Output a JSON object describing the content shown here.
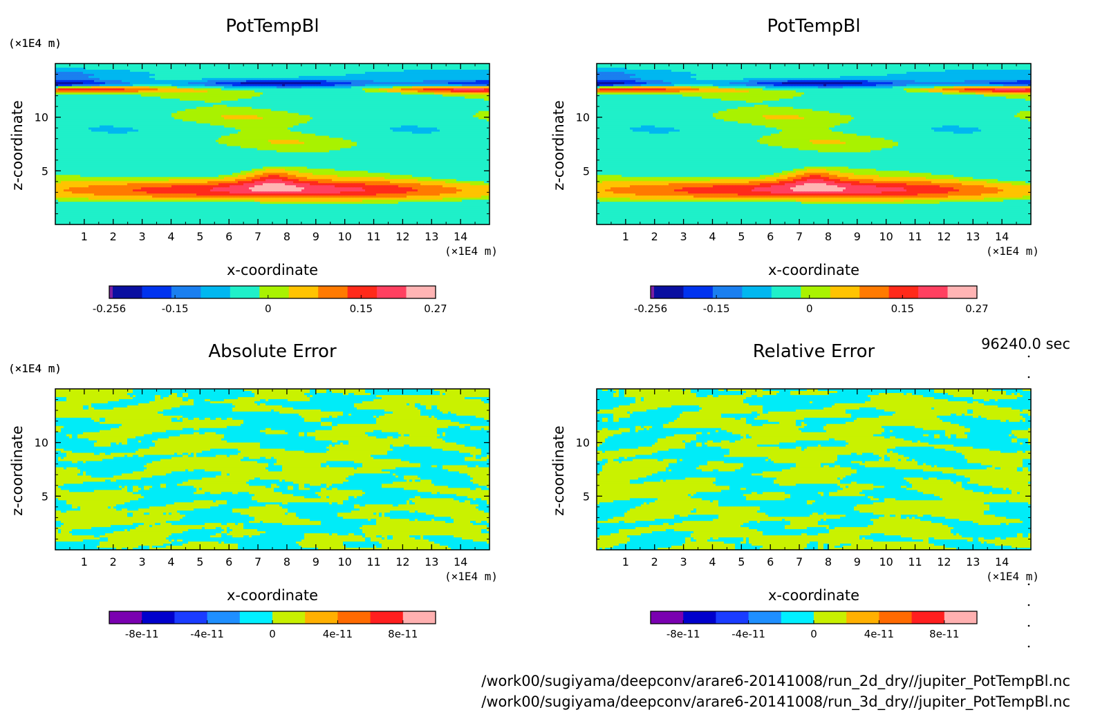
{
  "colors": {
    "palette_main": [
      "#7a1fa2",
      "#0a0fa0",
      "#0033ee",
      "#1a7ff0",
      "#00b7f0",
      "#1ff0c9",
      "#a9f200",
      "#ffc300",
      "#ff7a00",
      "#ff2a1a",
      "#ff4060",
      "#ffb4b4"
    ],
    "palette_error": [
      "#7a00b0",
      "#0000cc",
      "#1a3cff",
      "#1f8fff",
      "#00f0ff",
      "#c8f000",
      "#ffb000",
      "#ff6a00",
      "#ff1f1f",
      "#ffb0b0"
    ],
    "cyan_err": "#00ecf8",
    "yellow_err": "#c9f200"
  },
  "footer": {
    "time": "96240.0 sec",
    "path1": "/work00/sugiyama/deepconv/arare6-20141008/run_2d_dry//jupiter_PotTempBl.nc",
    "path2": "/work00/sugiyama/deepconv/arare6-20141008/run_3d_dry//jupiter_PotTempBl.nc"
  },
  "chart_data": [
    {
      "type": "heatmap",
      "title": "PotTempBl",
      "xlabel": "x-coordinate",
      "ylabel": "z-coordinate",
      "x_unit": "(×1E4 m)",
      "y_unit": "(×1E4 m)",
      "xlim": [
        0,
        15
      ],
      "ylim": [
        0,
        15
      ],
      "xticks": [
        "1",
        "2",
        "3",
        "4",
        "5",
        "6",
        "7",
        "8",
        "9",
        "10",
        "11",
        "12",
        "13",
        "14"
      ],
      "yticks": [
        "5",
        "10"
      ],
      "colorbar": {
        "labels": [
          "-0.256",
          "-0.15",
          "0",
          "0.15",
          "0.27"
        ],
        "min": -0.256,
        "max": 0.27
      },
      "field": "pottemp"
    },
    {
      "type": "heatmap",
      "title": "PotTempBl",
      "xlabel": "x-coordinate",
      "ylabel": "z-coordinate",
      "x_unit": "(×1E4 m)",
      "y_unit": "(×1E4 m)",
      "xlim": [
        0,
        15
      ],
      "ylim": [
        0,
        15
      ],
      "xticks": [
        "1",
        "2",
        "3",
        "4",
        "5",
        "6",
        "7",
        "8",
        "9",
        "10",
        "11",
        "12",
        "13",
        "14"
      ],
      "yticks": [
        "5",
        "10"
      ],
      "colorbar": {
        "labels": [
          "-0.256",
          "-0.15",
          "0",
          "0.15",
          "0.27"
        ],
        "min": -0.256,
        "max": 0.27
      },
      "field": "pottemp"
    },
    {
      "type": "heatmap",
      "title": "Absolute Error",
      "xlabel": "x-coordinate",
      "ylabel": "z-coordinate",
      "x_unit": "(×1E4 m)",
      "y_unit": "(×1E4 m)",
      "xlim": [
        0,
        15
      ],
      "ylim": [
        0,
        15
      ],
      "xticks": [
        "1",
        "2",
        "3",
        "4",
        "5",
        "6",
        "7",
        "8",
        "9",
        "10",
        "11",
        "12",
        "13",
        "14"
      ],
      "yticks": [
        "5",
        "10"
      ],
      "colorbar": {
        "labels": [
          "-8e-11",
          "-4e-11",
          "0",
          "4e-11",
          "8e-11"
        ],
        "min": -1e-10,
        "max": 1e-10
      },
      "field": "error"
    },
    {
      "type": "heatmap",
      "title": "Relative Error",
      "xlabel": "x-coordinate",
      "ylabel": "z-coordinate",
      "x_unit": "(×1E4 m)",
      "y_unit": "(×1E4 m)",
      "xlim": [
        0,
        15
      ],
      "ylim": [
        0,
        15
      ],
      "xticks": [
        "1",
        "2",
        "3",
        "4",
        "5",
        "6",
        "7",
        "8",
        "9",
        "10",
        "11",
        "12",
        "13",
        "14"
      ],
      "yticks": [
        "5",
        "10"
      ],
      "colorbar": {
        "labels": [
          "-8e-11",
          "-4e-11",
          "0",
          "4e-11",
          "8e-11"
        ],
        "min": -1e-10,
        "max": 1e-10
      },
      "field": "error2"
    }
  ]
}
